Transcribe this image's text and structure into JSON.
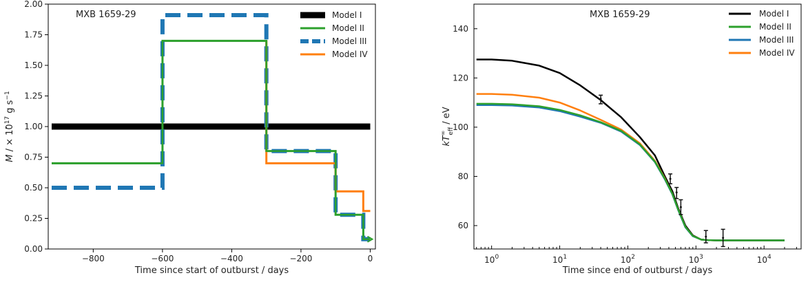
{
  "chart_data": [
    {
      "type": "line",
      "annotation": "MXB 1659-29",
      "xlabel": "Time since start of outburst / days",
      "ylabel_parts": {
        "prefix": "M",
        "middle": " / × 10",
        "exp1": "17",
        "after": " g s",
        "exp2": "−1"
      },
      "xlim": [
        -930,
        15
      ],
      "ylim": [
        0.0,
        2.0
      ],
      "xticks": [
        -800,
        -600,
        -400,
        -200,
        0
      ],
      "xtick_labels": [
        "−800",
        "−600",
        "−400",
        "−200",
        "0"
      ],
      "yticks": [
        0.0,
        0.25,
        0.5,
        0.75,
        1.0,
        1.25,
        1.5,
        1.75,
        2.0
      ],
      "ytick_labels": [
        "0.00",
        "0.25",
        "0.50",
        "0.75",
        "1.00",
        "1.25",
        "1.50",
        "1.75",
        "2.00"
      ],
      "legend_position": "top-right",
      "series": [
        {
          "name": "Model I",
          "color": "#000000",
          "style": "thick",
          "x": [
            -920,
            0
          ],
          "y": [
            1.0,
            1.0
          ]
        },
        {
          "name": "Model II",
          "color": "#2ca02c",
          "style": "solid",
          "x": [
            -920,
            -600,
            -600,
            -300,
            -300,
            -100,
            -100,
            -20,
            -20,
            0
          ],
          "y": [
            0.7,
            0.7,
            1.7,
            1.7,
            0.8,
            0.8,
            0.28,
            0.28,
            0.08,
            0.08
          ]
        },
        {
          "name": "Model III",
          "color": "#1f77b4",
          "style": "dashed",
          "x": [
            -920,
            -600,
            -600,
            -300,
            -300,
            -100,
            -100,
            -20,
            -20,
            0
          ],
          "y": [
            0.5,
            0.5,
            1.91,
            1.91,
            0.8,
            0.8,
            0.28,
            0.28,
            0.08,
            0.08
          ]
        },
        {
          "name": "Model IV",
          "color": "#ff7f0e",
          "style": "solid",
          "x": [
            -300,
            -300,
            -100,
            -100,
            -40,
            -40,
            -20,
            -20,
            0
          ],
          "y": [
            1.7,
            0.7,
            0.7,
            0.47,
            0.47,
            0.47,
            0.47,
            0.31,
            0.31
          ]
        }
      ]
    },
    {
      "type": "line",
      "annotation": "MXB 1659-29",
      "xlabel": "Time since end of outburst / days",
      "ylabel_parts": {
        "prefix": "kT",
        "sup": "∞",
        "sub": "eff",
        "after": " / eV"
      },
      "xscale": "log",
      "xlim": [
        0.55,
        35000
      ],
      "ylim": [
        50.5,
        150
      ],
      "xticks": [
        1,
        10,
        100,
        1000,
        10000
      ],
      "xtick_labels": [
        "10^0",
        "10^1",
        "10^2",
        "10^3",
        "10^4"
      ],
      "yticks": [
        60,
        80,
        100,
        120,
        140
      ],
      "ytick_labels": [
        "60",
        "80",
        "100",
        "120",
        "140"
      ],
      "legend_position": "top-right",
      "series": [
        {
          "name": "Model I",
          "color": "#000000",
          "x": [
            0.6,
            1,
            2,
            5,
            10,
            20,
            40,
            80,
            150,
            250,
            350,
            450,
            550,
            700,
            900,
            1200,
            1500,
            2000,
            3000,
            5000,
            10000,
            20000
          ],
          "y": [
            127.5,
            127.5,
            127,
            125,
            122,
            117,
            111,
            104,
            96,
            88.5,
            80,
            74,
            67,
            60,
            56,
            54.3,
            54.1,
            54,
            54,
            54,
            54,
            54
          ]
        },
        {
          "name": "Model II",
          "color": "#2ca02c",
          "x": [
            0.6,
            1,
            2,
            5,
            10,
            20,
            40,
            80,
            150,
            250,
            350,
            450,
            550,
            700,
            900,
            1200,
            1500,
            2000,
            3000,
            5000,
            10000,
            20000
          ],
          "y": [
            109.5,
            109.5,
            109.3,
            108.5,
            107,
            104.8,
            102,
            98.5,
            93,
            86,
            79,
            73,
            66.5,
            59.5,
            55.8,
            54.3,
            54.1,
            54,
            54,
            54,
            54,
            54
          ]
        },
        {
          "name": "Model III",
          "color": "#1f77b4",
          "x": [
            0.6,
            1,
            2,
            5,
            10,
            20,
            40,
            80,
            150,
            250,
            350,
            450,
            550,
            700,
            900,
            1200,
            1500,
            2000,
            3000,
            5000,
            10000,
            20000
          ],
          "y": [
            109,
            109,
            108.8,
            108,
            106.5,
            104.3,
            101.8,
            98.2,
            92.8,
            85.8,
            78.8,
            72.8,
            66.3,
            59.3,
            55.7,
            54.3,
            54.1,
            54,
            54,
            54,
            54,
            54
          ]
        },
        {
          "name": "Model IV",
          "color": "#ff7f0e",
          "x": [
            0.6,
            1,
            2,
            5,
            10,
            20,
            40,
            80,
            150,
            250,
            350,
            450,
            550,
            700,
            900,
            1200,
            1500,
            2000,
            3000,
            5000,
            10000,
            20000
          ],
          "y": [
            113.5,
            113.5,
            113.2,
            112,
            110,
            106.8,
            103,
            99,
            93.5,
            86.3,
            79.2,
            73,
            66.5,
            59.5,
            55.8,
            54.3,
            54.1,
            54,
            54,
            54,
            54,
            54
          ]
        }
      ],
      "errorbars": {
        "x": [
          40,
          420,
          520,
          600,
          1400,
          2500
        ],
        "y": [
          111.5,
          79,
          73.5,
          67.5,
          55.5,
          55
        ],
        "ylow": [
          109.5,
          77,
          71,
          64.5,
          53,
          51.5
        ],
        "yhigh": [
          113,
          81,
          75.5,
          70.5,
          58,
          58.5
        ]
      }
    }
  ]
}
